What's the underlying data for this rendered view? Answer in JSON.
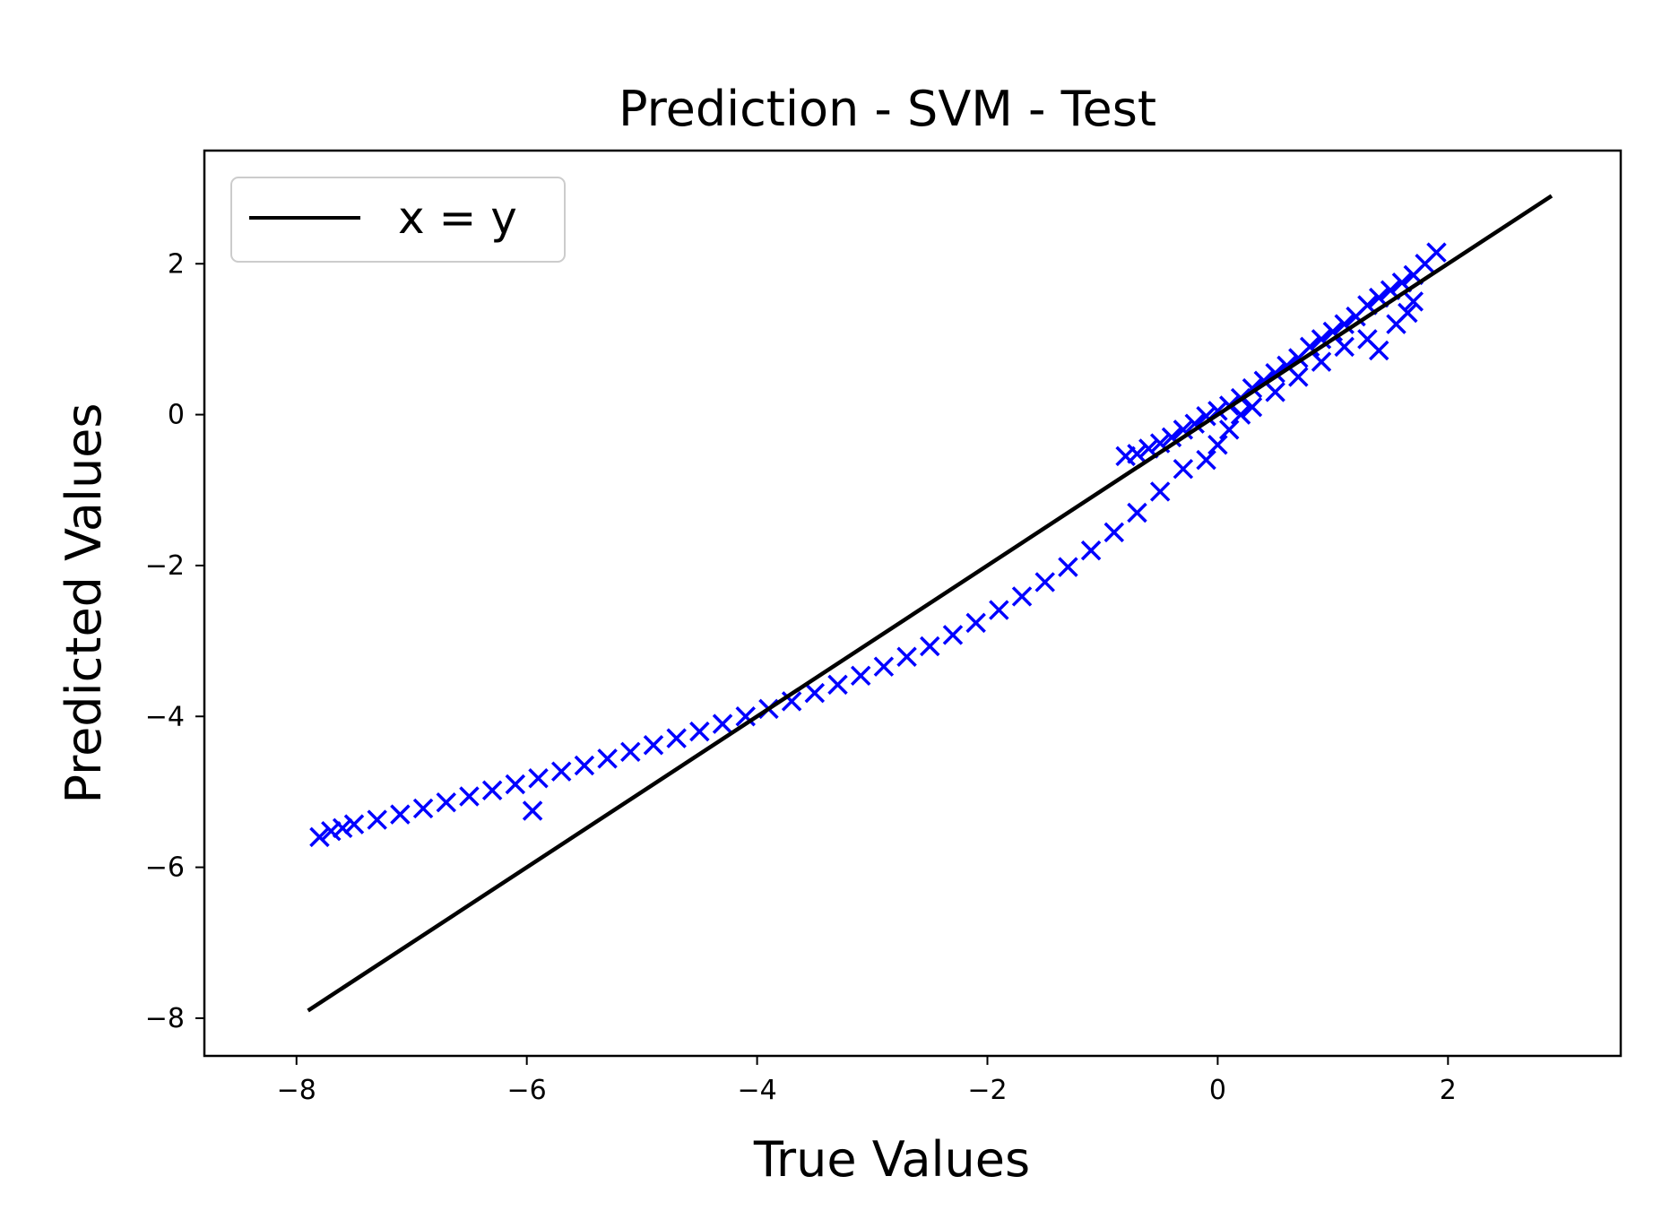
{
  "chart_data": {
    "type": "scatter",
    "title": "Prediction - SVM - Test",
    "xlabel": "True Values",
    "ylabel": "Predicted Values",
    "xlim": [
      -8.8,
      3.5
    ],
    "ylim": [
      -8.5,
      3.5
    ],
    "x_ticks": [
      -8,
      -6,
      -4,
      -2,
      0,
      2
    ],
    "y_ticks": [
      -8,
      -6,
      -4,
      -2,
      0,
      2
    ],
    "x_tick_labels": [
      "−8",
      "−6",
      "−4",
      "−2",
      "0",
      "2"
    ],
    "y_tick_labels": [
      "−8",
      "−6",
      "−4",
      "−2",
      "0",
      "2"
    ],
    "grid": false,
    "legend_position": "upper-left",
    "legend": [
      {
        "label": "x = y",
        "color": "#000000"
      }
    ],
    "series": [
      {
        "name": "x = y",
        "kind": "line",
        "color": "#000000",
        "points": [
          [
            -7.9,
            -7.9
          ],
          [
            2.9,
            2.9
          ]
        ]
      },
      {
        "kind": "scatter",
        "marker": "x",
        "color": "#0000ff",
        "points": [
          [
            -7.8,
            -5.6
          ],
          [
            -7.7,
            -5.52
          ],
          [
            -7.6,
            -5.48
          ],
          [
            -7.5,
            -5.43
          ],
          [
            -7.3,
            -5.37
          ],
          [
            -7.1,
            -5.3
          ],
          [
            -6.9,
            -5.22
          ],
          [
            -6.7,
            -5.14
          ],
          [
            -6.5,
            -5.06
          ],
          [
            -6.3,
            -4.98
          ],
          [
            -6.1,
            -4.9
          ],
          [
            -5.9,
            -4.82
          ],
          [
            -5.7,
            -4.73
          ],
          [
            -5.5,
            -4.65
          ],
          [
            -5.3,
            -4.56
          ],
          [
            -5.1,
            -4.47
          ],
          [
            -4.9,
            -4.38
          ],
          [
            -4.7,
            -4.29
          ],
          [
            -4.5,
            -4.2
          ],
          [
            -4.3,
            -4.1
          ],
          [
            -4.1,
            -4.0
          ],
          [
            -3.9,
            -3.9
          ],
          [
            -3.7,
            -3.8
          ],
          [
            -3.5,
            -3.69
          ],
          [
            -3.3,
            -3.58
          ],
          [
            -3.1,
            -3.46
          ],
          [
            -2.9,
            -3.34
          ],
          [
            -2.7,
            -3.21
          ],
          [
            -2.5,
            -3.07
          ],
          [
            -2.3,
            -2.92
          ],
          [
            -2.1,
            -2.76
          ],
          [
            -1.9,
            -2.59
          ],
          [
            -1.7,
            -2.41
          ],
          [
            -1.5,
            -2.22
          ],
          [
            -1.3,
            -2.02
          ],
          [
            -1.1,
            -1.8
          ],
          [
            -0.9,
            -1.56
          ],
          [
            -0.7,
            -1.3
          ],
          [
            -0.5,
            -1.02
          ],
          [
            -0.3,
            -0.72
          ],
          [
            -5.95,
            -5.25
          ],
          [
            -0.8,
            -0.55
          ],
          [
            -0.7,
            -0.52
          ],
          [
            -0.6,
            -0.45
          ],
          [
            -0.5,
            -0.38
          ],
          [
            -0.4,
            -0.3
          ],
          [
            -0.3,
            -0.2
          ],
          [
            -0.2,
            -0.12
          ],
          [
            -0.1,
            -0.02
          ],
          [
            0.0,
            0.05
          ],
          [
            0.1,
            0.12
          ],
          [
            0.2,
            0.22
          ],
          [
            0.3,
            0.35
          ],
          [
            0.4,
            0.45
          ],
          [
            0.5,
            0.55
          ],
          [
            0.6,
            0.65
          ],
          [
            0.7,
            0.75
          ],
          [
            0.8,
            0.9
          ],
          [
            0.9,
            1.0
          ],
          [
            1.0,
            1.1
          ],
          [
            1.1,
            1.2
          ],
          [
            1.2,
            1.3
          ],
          [
            1.3,
            1.45
          ],
          [
            1.4,
            1.55
          ],
          [
            1.5,
            1.65
          ],
          [
            1.6,
            1.75
          ],
          [
            1.7,
            1.85
          ],
          [
            1.8,
            2.0
          ],
          [
            1.9,
            2.15
          ],
          [
            -0.1,
            -0.6
          ],
          [
            0.0,
            -0.4
          ],
          [
            0.1,
            -0.2
          ],
          [
            0.2,
            0.0
          ],
          [
            0.3,
            0.1
          ],
          [
            0.5,
            0.3
          ],
          [
            0.7,
            0.5
          ],
          [
            0.9,
            0.7
          ],
          [
            1.1,
            0.9
          ],
          [
            1.3,
            1.0
          ],
          [
            1.4,
            0.85
          ],
          [
            1.55,
            1.2
          ],
          [
            1.65,
            1.35
          ],
          [
            1.7,
            1.5
          ]
        ]
      }
    ]
  }
}
